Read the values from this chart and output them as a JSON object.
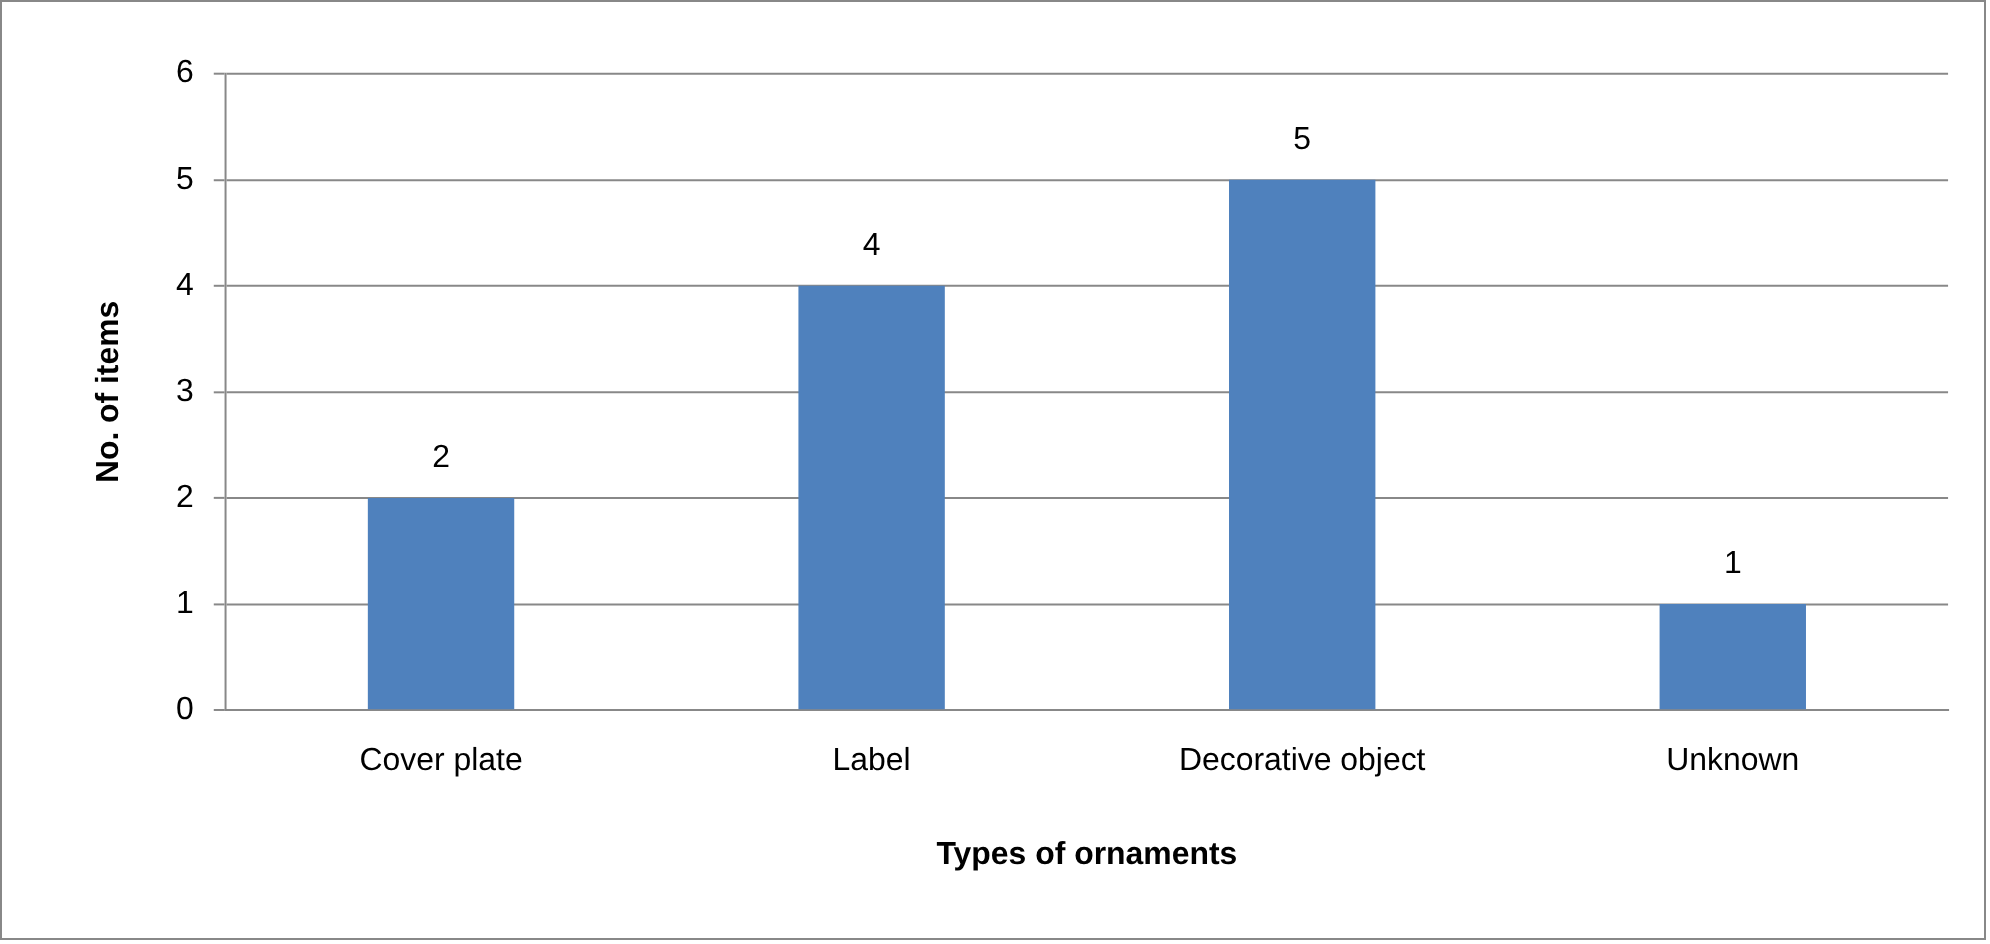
{
  "chart_data": {
    "type": "bar",
    "xlabel": "Types of ornaments",
    "ylabel": "No. of items",
    "categories": [
      "Cover plate",
      "Label",
      "Decorative object",
      "Unknown"
    ],
    "values": [
      2,
      4,
      5,
      1
    ],
    "color": "#4f81bd",
    "ylim": [
      0,
      6
    ],
    "yticks": [
      0,
      1,
      2,
      3,
      4,
      5,
      6
    ],
    "grid": "y",
    "legend": false,
    "data_labels": true
  }
}
